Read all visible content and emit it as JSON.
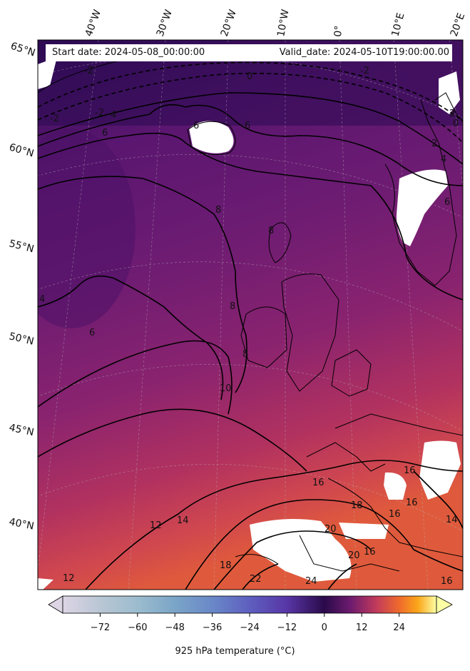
{
  "header": {
    "start_date": "Start date: 2024-05-08_00:00:00",
    "valid_date": "Valid_date: 2024-05-10T19:00:00.00"
  },
  "map": {
    "lon_labels": [
      "40°W",
      "30°W",
      "20°W",
      "10°W",
      "0°",
      "10°E",
      "20°E"
    ],
    "lat_labels": [
      "65°N",
      "60°N",
      "55°N",
      "50°N",
      "45°N",
      "40°N"
    ],
    "contour_labels": [
      "-2",
      "-2",
      "-2",
      "-2",
      "0",
      "0",
      "2",
      "2",
      "4",
      "4",
      "4",
      "6",
      "6",
      "6",
      "6",
      "6",
      "8",
      "8",
      "8",
      "8",
      "10",
      "12",
      "12",
      "14",
      "14",
      "16",
      "16",
      "16",
      "16",
      "16",
      "18",
      "18",
      "20",
      "20",
      "22",
      "24",
      "16"
    ]
  },
  "colorbar": {
    "ticks": [
      "−72",
      "−60",
      "−48",
      "−36",
      "−24",
      "−12",
      "0",
      "12",
      "24"
    ],
    "label": "925 hPa temperature ($^\\circ$C)",
    "label_display": "925 hPa temperature (°C)",
    "min": -84,
    "max": 36,
    "colors": {
      "cold_end": "#ddd5e4",
      "mid_blue": "#6a88c8",
      "zero": "#2a0a4a",
      "warm_mid": "#c23b5b",
      "warm_end": "#fcfea4"
    }
  }
}
